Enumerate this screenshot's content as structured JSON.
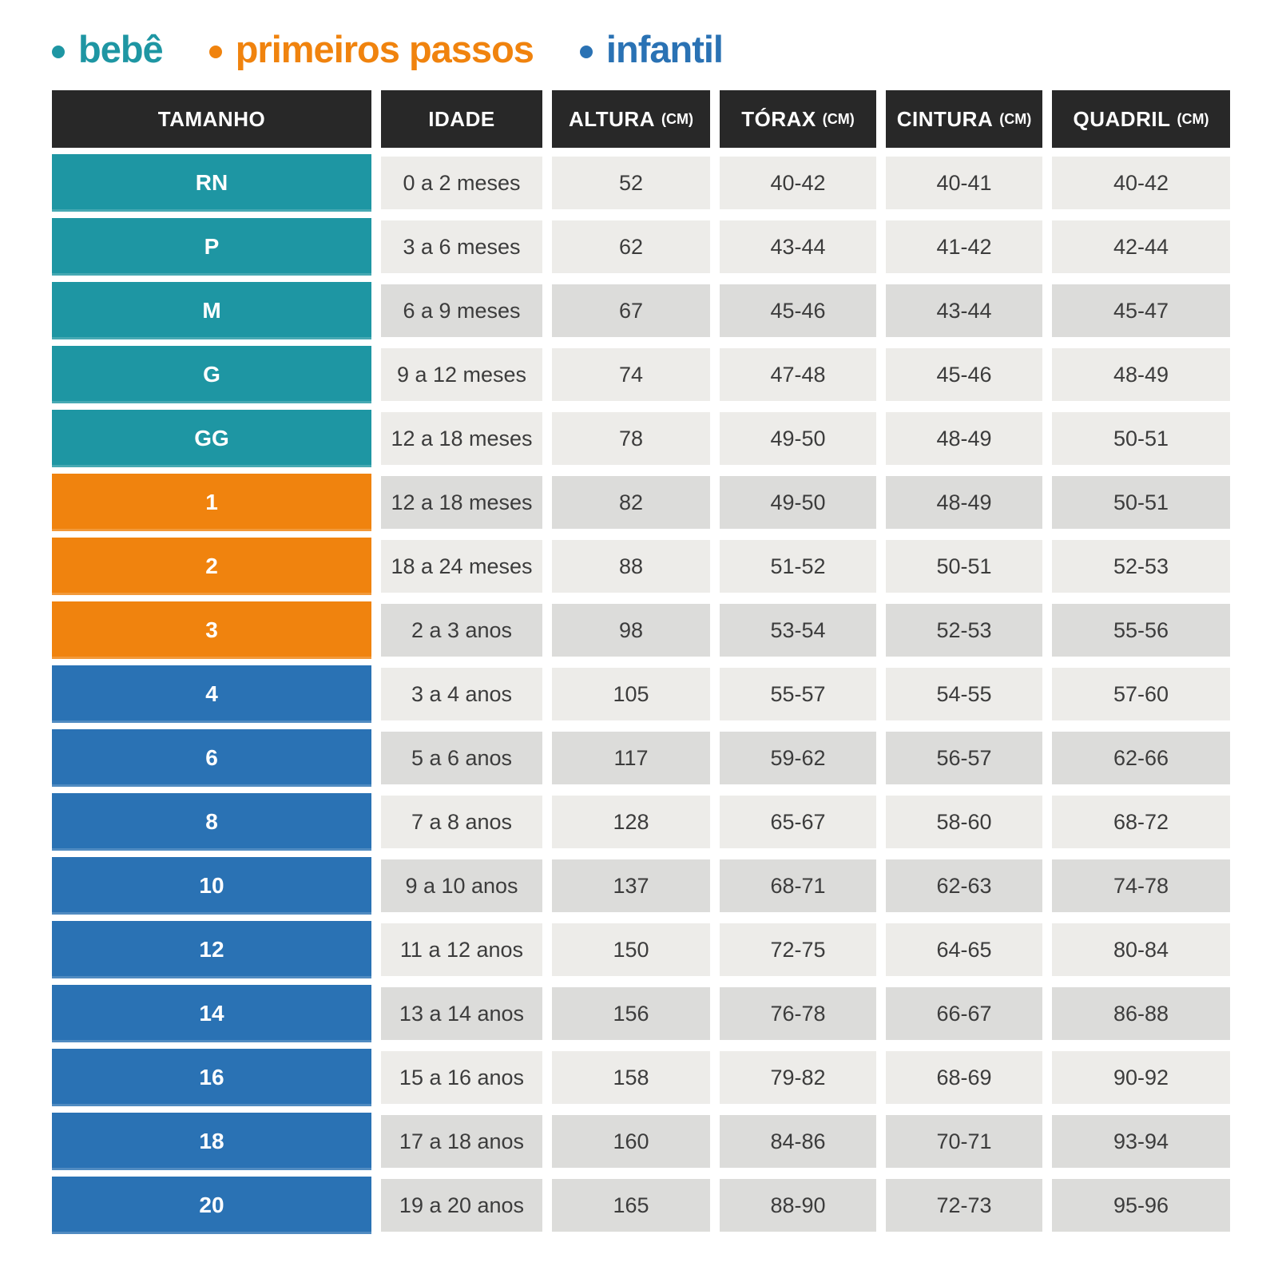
{
  "colors": {
    "teal": "#1e96a3",
    "orange": "#f0830e",
    "blue": "#2a72b4",
    "header_bg": "#282828",
    "header_text": "#ffffff",
    "row_light": "#edece9",
    "row_dark": "#dcdcda",
    "cell_text": "#3c3c3c",
    "page_bg": "#ffffff"
  },
  "legend": {
    "items": [
      {
        "id": "bebe",
        "label": "bebê",
        "color_key": "teal"
      },
      {
        "id": "primeiros_passos",
        "label": "primeiros passos",
        "color_key": "orange"
      },
      {
        "id": "infantil",
        "label": "infantil",
        "color_key": "blue"
      }
    ]
  },
  "table": {
    "columns": [
      {
        "key": "size",
        "label": "TAMANHO",
        "unit": ""
      },
      {
        "key": "idade",
        "label": "IDADE",
        "unit": ""
      },
      {
        "key": "altura",
        "label": "ALTURA",
        "unit": "(CM)"
      },
      {
        "key": "torax",
        "label": "TÓRAX",
        "unit": "(CM)"
      },
      {
        "key": "cintura",
        "label": "CINTURA",
        "unit": "(CM)"
      },
      {
        "key": "quadril",
        "label": "QUADRIL",
        "unit": "(CM)"
      }
    ],
    "rows": [
      {
        "size": "RN",
        "group": "bebe",
        "shaded": false,
        "idade": "0 a 2 meses",
        "altura": "52",
        "torax": "40-42",
        "cintura": "40-41",
        "quadril": "40-42"
      },
      {
        "size": "P",
        "group": "bebe",
        "shaded": false,
        "idade": "3 a 6 meses",
        "altura": "62",
        "torax": "43-44",
        "cintura": "41-42",
        "quadril": "42-44"
      },
      {
        "size": "M",
        "group": "bebe",
        "shaded": true,
        "idade": "6 a 9 meses",
        "altura": "67",
        "torax": "45-46",
        "cintura": "43-44",
        "quadril": "45-47"
      },
      {
        "size": "G",
        "group": "bebe",
        "shaded": false,
        "idade": "9 a 12 meses",
        "altura": "74",
        "torax": "47-48",
        "cintura": "45-46",
        "quadril": "48-49"
      },
      {
        "size": "GG",
        "group": "bebe",
        "shaded": false,
        "idade": "12 a 18 meses",
        "altura": "78",
        "torax": "49-50",
        "cintura": "48-49",
        "quadril": "50-51"
      },
      {
        "size": "1",
        "group": "primeiros_passos",
        "shaded": true,
        "idade": "12 a 18 meses",
        "altura": "82",
        "torax": "49-50",
        "cintura": "48-49",
        "quadril": "50-51"
      },
      {
        "size": "2",
        "group": "primeiros_passos",
        "shaded": false,
        "idade": "18 a 24 meses",
        "altura": "88",
        "torax": "51-52",
        "cintura": "50-51",
        "quadril": "52-53"
      },
      {
        "size": "3",
        "group": "primeiros_passos",
        "shaded": true,
        "idade": "2 a 3 anos",
        "altura": "98",
        "torax": "53-54",
        "cintura": "52-53",
        "quadril": "55-56"
      },
      {
        "size": "4",
        "group": "infantil",
        "shaded": false,
        "idade": "3 a 4 anos",
        "altura": "105",
        "torax": "55-57",
        "cintura": "54-55",
        "quadril": "57-60"
      },
      {
        "size": "6",
        "group": "infantil",
        "shaded": true,
        "idade": "5 a 6 anos",
        "altura": "117",
        "torax": "59-62",
        "cintura": "56-57",
        "quadril": "62-66"
      },
      {
        "size": "8",
        "group": "infantil",
        "shaded": false,
        "idade": "7 a 8 anos",
        "altura": "128",
        "torax": "65-67",
        "cintura": "58-60",
        "quadril": "68-72"
      },
      {
        "size": "10",
        "group": "infantil",
        "shaded": true,
        "idade": "9 a 10 anos",
        "altura": "137",
        "torax": "68-71",
        "cintura": "62-63",
        "quadril": "74-78"
      },
      {
        "size": "12",
        "group": "infantil",
        "shaded": false,
        "idade": "11 a 12 anos",
        "altura": "150",
        "torax": "72-75",
        "cintura": "64-65",
        "quadril": "80-84"
      },
      {
        "size": "14",
        "group": "infantil",
        "shaded": true,
        "idade": "13 a 14 anos",
        "altura": "156",
        "torax": "76-78",
        "cintura": "66-67",
        "quadril": "86-88"
      },
      {
        "size": "16",
        "group": "infantil",
        "shaded": false,
        "idade": "15 a 16 anos",
        "altura": "158",
        "torax": "79-82",
        "cintura": "68-69",
        "quadril": "90-92"
      },
      {
        "size": "18",
        "group": "infantil",
        "shaded": true,
        "idade": "17 a 18 anos",
        "altura": "160",
        "torax": "84-86",
        "cintura": "70-71",
        "quadril": "93-94"
      },
      {
        "size": "20",
        "group": "infantil",
        "shaded": true,
        "idade": "19 a 20 anos",
        "altura": "165",
        "torax": "88-90",
        "cintura": "72-73",
        "quadril": "95-96"
      }
    ]
  },
  "chart_data": {
    "type": "table",
    "title": "",
    "legend": [
      "bebê",
      "primeiros passos",
      "infantil"
    ],
    "columns": [
      "TAMANHO",
      "IDADE",
      "ALTURA (CM)",
      "TÓRAX (CM)",
      "CINTURA (CM)",
      "QUADRIL (CM)"
    ],
    "rows": [
      [
        "RN",
        "0 a 2 meses",
        "52",
        "40-42",
        "40-41",
        "40-42"
      ],
      [
        "P",
        "3 a 6 meses",
        "62",
        "43-44",
        "41-42",
        "42-44"
      ],
      [
        "M",
        "6 a 9 meses",
        "67",
        "45-46",
        "43-44",
        "45-47"
      ],
      [
        "G",
        "9 a 12 meses",
        "74",
        "47-48",
        "45-46",
        "48-49"
      ],
      [
        "GG",
        "12 a 18 meses",
        "78",
        "49-50",
        "48-49",
        "50-51"
      ],
      [
        "1",
        "12 a 18 meses",
        "82",
        "49-50",
        "48-49",
        "50-51"
      ],
      [
        "2",
        "18 a 24 meses",
        "88",
        "51-52",
        "50-51",
        "52-53"
      ],
      [
        "3",
        "2 a 3 anos",
        "98",
        "53-54",
        "52-53",
        "55-56"
      ],
      [
        "4",
        "3 a 4 anos",
        "105",
        "55-57",
        "54-55",
        "57-60"
      ],
      [
        "6",
        "5 a 6 anos",
        "117",
        "59-62",
        "56-57",
        "62-66"
      ],
      [
        "8",
        "7 a 8 anos",
        "128",
        "65-67",
        "58-60",
        "68-72"
      ],
      [
        "10",
        "9 a 10 anos",
        "137",
        "68-71",
        "62-63",
        "74-78"
      ],
      [
        "12",
        "11 a 12 anos",
        "150",
        "72-75",
        "64-65",
        "80-84"
      ],
      [
        "14",
        "13 a 14 anos",
        "156",
        "76-78",
        "66-67",
        "86-88"
      ],
      [
        "16",
        "15 a 16 anos",
        "158",
        "79-82",
        "68-69",
        "90-92"
      ],
      [
        "18",
        "17 a 18 anos",
        "160",
        "84-86",
        "70-71",
        "93-94"
      ],
      [
        "20",
        "19 a 20 anos",
        "165",
        "88-90",
        "72-73",
        "95-96"
      ]
    ]
  }
}
